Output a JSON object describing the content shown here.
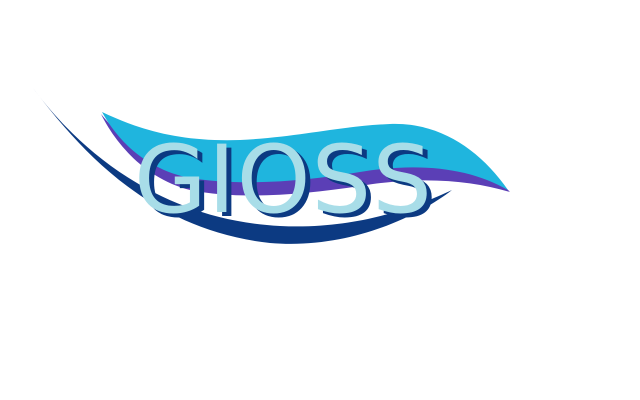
{
  "logo": {
    "wordmark": "GIOSS",
    "colors": {
      "background": "#ffffff",
      "dark_wave": "#0c3a82",
      "light_wave": "#1fb5de",
      "wave_edge": "#5b3fb6",
      "text_fill": "#a8dde8",
      "text_shadow": "#0c3a82"
    }
  }
}
